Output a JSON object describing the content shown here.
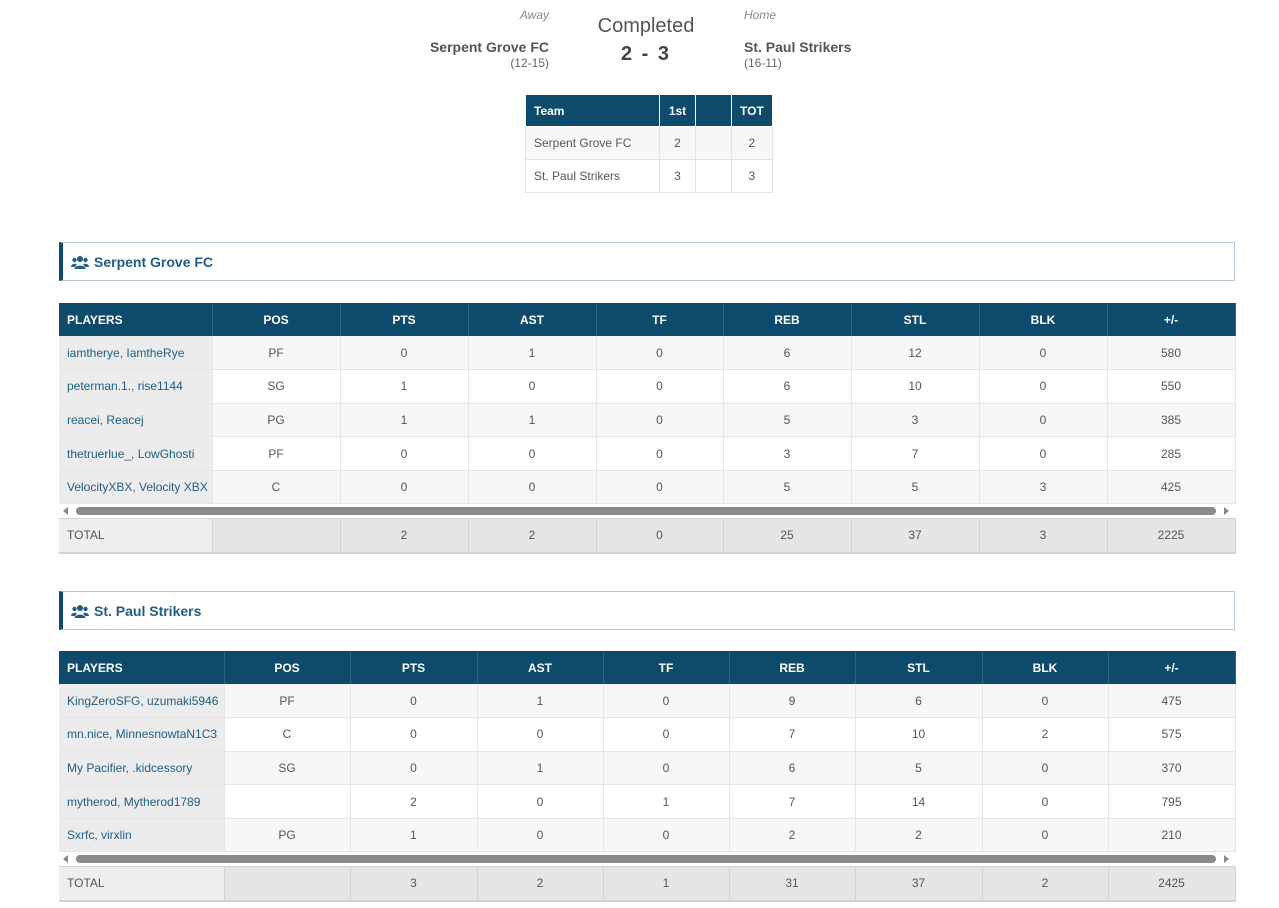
{
  "game": {
    "status": "Completed",
    "away_label": "Away",
    "home_label": "Home",
    "away": {
      "name": "Serpent Grove FC",
      "record": "(12-15)",
      "score": "2"
    },
    "home": {
      "name": "St. Paul Strikers",
      "record": "(16-11)",
      "score": "3"
    },
    "score_display": "2 - 3"
  },
  "linescore": {
    "headers": [
      "Team",
      "1st",
      "",
      "TOT"
    ],
    "rows": [
      {
        "team": "Serpent Grove FC",
        "q1": "2",
        "extra": "",
        "tot": "2"
      },
      {
        "team": "St. Paul Strikers",
        "q1": "3",
        "extra": "",
        "tot": "3"
      }
    ]
  },
  "columns": [
    "PLAYERS",
    "POS",
    "PTS",
    "AST",
    "TF",
    "REB",
    "STL",
    "BLK",
    "+/-"
  ],
  "teams": [
    {
      "name": "Serpent Grove FC",
      "icon": "users-icon",
      "players": [
        [
          "iamtherye, IamtheRye",
          "PF",
          "0",
          "1",
          "0",
          "6",
          "12",
          "0",
          "580"
        ],
        [
          "peterman.1., rise1144",
          "SG",
          "1",
          "0",
          "0",
          "6",
          "10",
          "0",
          "550"
        ],
        [
          "reacei, Reacej",
          "PG",
          "1",
          "1",
          "0",
          "5",
          "3",
          "0",
          "385"
        ],
        [
          "thetruerlue_, LowGhosti",
          "PF",
          "0",
          "0",
          "0",
          "3",
          "7",
          "0",
          "285"
        ],
        [
          "VelocityXBX, Velocity XBX",
          "C",
          "0",
          "0",
          "0",
          "5",
          "5",
          "3",
          "425"
        ]
      ],
      "totals": [
        "TOTAL",
        "",
        "2",
        "2",
        "0",
        "25",
        "37",
        "3",
        "2225"
      ]
    },
    {
      "name": "St. Paul Strikers",
      "icon": "users-icon",
      "players": [
        [
          "KingZeroSFG, uzumaki5946",
          "PF",
          "0",
          "1",
          "0",
          "9",
          "6",
          "0",
          "475"
        ],
        [
          "mn.nice, MinnesnowtaN1C3",
          "C",
          "0",
          "0",
          "0",
          "7",
          "10",
          "2",
          "575"
        ],
        [
          "My Pacifier, .kidcessory",
          "SG",
          "0",
          "1",
          "0",
          "6",
          "5",
          "0",
          "370"
        ],
        [
          "mytherod, Mytherod1789",
          "",
          "2",
          "0",
          "1",
          "7",
          "14",
          "0",
          "795"
        ],
        [
          "Sxrfc, virxlin",
          "PG",
          "1",
          "0",
          "0",
          "2",
          "2",
          "0",
          "210"
        ]
      ],
      "totals": [
        "TOTAL",
        "",
        "3",
        "2",
        "1",
        "31",
        "37",
        "2",
        "2425"
      ]
    }
  ],
  "colors": {
    "header_bg": "#0d4a6b",
    "link": "#1f5e85",
    "row_alt": "#f7f7f7"
  }
}
